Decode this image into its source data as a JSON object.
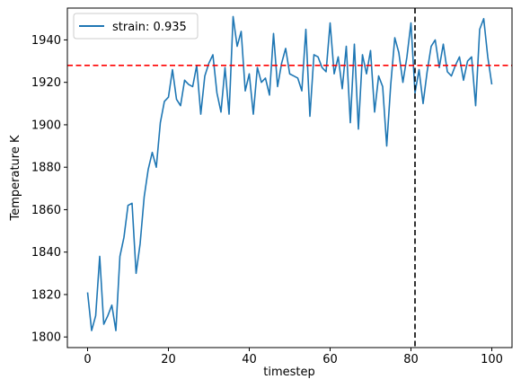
{
  "chart_data": {
    "type": "line",
    "xlabel": "timestep",
    "ylabel": "Temperature K",
    "xlim": [
      -5,
      105
    ],
    "ylim": [
      1795,
      1955
    ],
    "xticks": [
      0,
      20,
      40,
      60,
      80,
      100
    ],
    "yticks": [
      1800,
      1820,
      1840,
      1860,
      1880,
      1900,
      1920,
      1940
    ],
    "grid": false,
    "legend_position": "top-left",
    "series": [
      {
        "name": "strain: 0.935",
        "color": "#1f77b4",
        "x": [
          0,
          1,
          2,
          3,
          4,
          5,
          6,
          7,
          8,
          9,
          10,
          11,
          12,
          13,
          14,
          15,
          16,
          17,
          18,
          19,
          20,
          21,
          22,
          23,
          24,
          25,
          26,
          27,
          28,
          29,
          30,
          31,
          32,
          33,
          34,
          35,
          36,
          37,
          38,
          39,
          40,
          41,
          42,
          43,
          44,
          45,
          46,
          47,
          48,
          49,
          50,
          51,
          52,
          53,
          54,
          55,
          56,
          57,
          58,
          59,
          60,
          61,
          62,
          63,
          64,
          65,
          66,
          67,
          68,
          69,
          70,
          71,
          72,
          73,
          74,
          75,
          76,
          77,
          78,
          79,
          80,
          81,
          82,
          83,
          84,
          85,
          86,
          87,
          88,
          89,
          90,
          91,
          92,
          93,
          94,
          95,
          96,
          97,
          98,
          99,
          100
        ],
        "y": [
          1821,
          1803,
          1810,
          1838,
          1806,
          1810,
          1815,
          1803,
          1838,
          1847,
          1862,
          1863,
          1830,
          1844,
          1866,
          1879,
          1887,
          1880,
          1901,
          1911,
          1913,
          1926,
          1912,
          1909,
          1921,
          1919,
          1918,
          1928,
          1905,
          1923,
          1929,
          1933,
          1915,
          1906,
          1927,
          1905,
          1951,
          1937,
          1944,
          1916,
          1924,
          1905,
          1927,
          1920,
          1922,
          1914,
          1943,
          1918,
          1929,
          1936,
          1924,
          1923,
          1922,
          1916,
          1945,
          1904,
          1933,
          1932,
          1927,
          1925,
          1948,
          1924,
          1932,
          1917,
          1937,
          1901,
          1938,
          1898,
          1933,
          1924,
          1935,
          1906,
          1923,
          1918,
          1890,
          1919,
          1941,
          1934,
          1920,
          1932,
          1948,
          1915,
          1926,
          1910,
          1925,
          1937,
          1940,
          1927,
          1938,
          1925,
          1923,
          1928,
          1932,
          1921,
          1930,
          1932,
          1909,
          1945,
          1950,
          1932,
          1919
        ]
      }
    ],
    "reference_lines": [
      {
        "orientation": "horizontal",
        "value": 1928,
        "color": "#ff0000",
        "style": "dashed"
      },
      {
        "orientation": "vertical",
        "value": 81,
        "color": "#000000",
        "style": "dashed"
      }
    ]
  }
}
